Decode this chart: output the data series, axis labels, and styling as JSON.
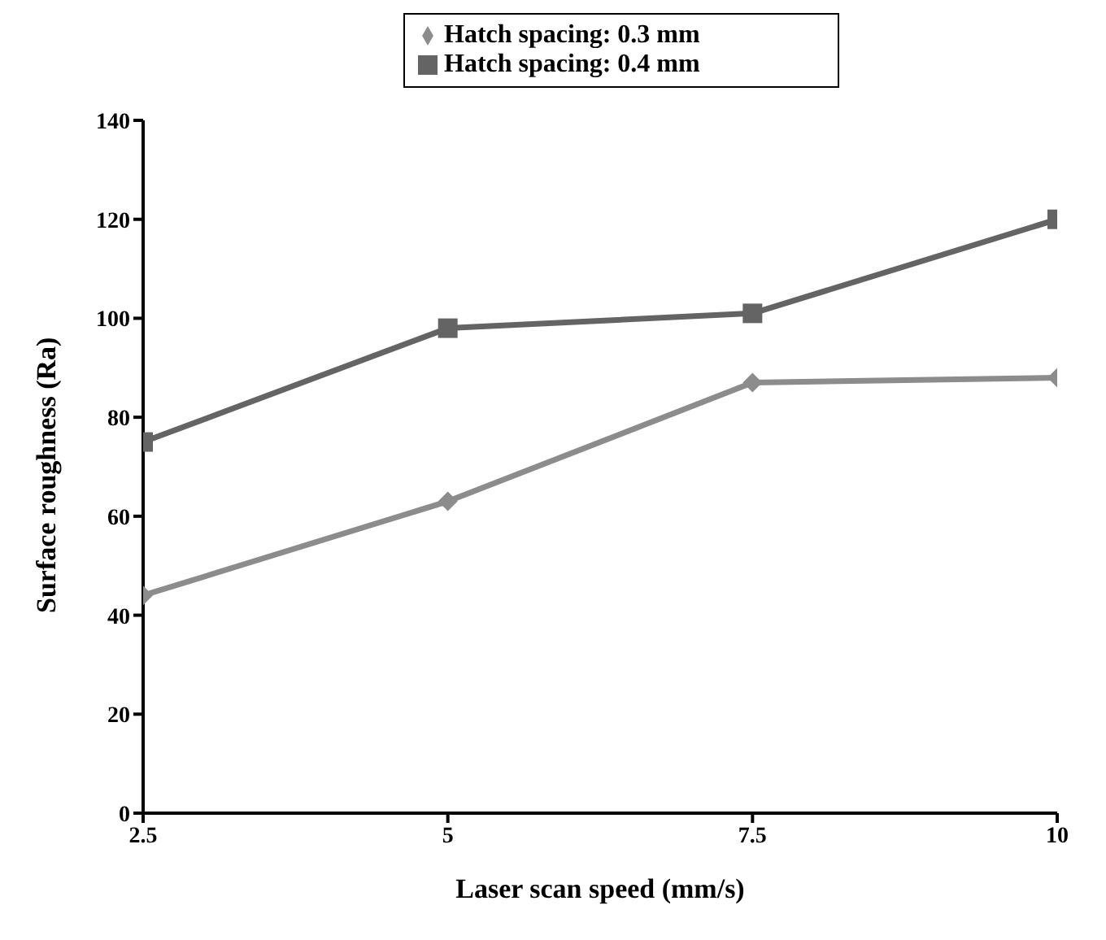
{
  "chart_data": {
    "type": "line",
    "xlabel": "Laser scan speed (mm/s)",
    "ylabel": "Surface roughness (Ra)",
    "x": [
      2.5,
      5,
      7.5,
      10
    ],
    "series": [
      {
        "name": "Hatch spacing: 0.3 mm",
        "color": "#8c8c8c",
        "marker": "diamond",
        "values": [
          44,
          63,
          87,
          88
        ]
      },
      {
        "name": "Hatch spacing: 0.4 mm",
        "color": "#646464",
        "marker": "square",
        "values": [
          75,
          98,
          101,
          120
        ]
      }
    ],
    "xlim": [
      2.5,
      10
    ],
    "xticks": [
      2.5,
      5,
      7.5,
      10
    ],
    "ylim": [
      0,
      140
    ],
    "yticks": [
      0,
      20,
      40,
      60,
      80,
      100,
      120,
      140
    ],
    "grid": false,
    "legend": "top",
    "line_style": "solid"
  }
}
